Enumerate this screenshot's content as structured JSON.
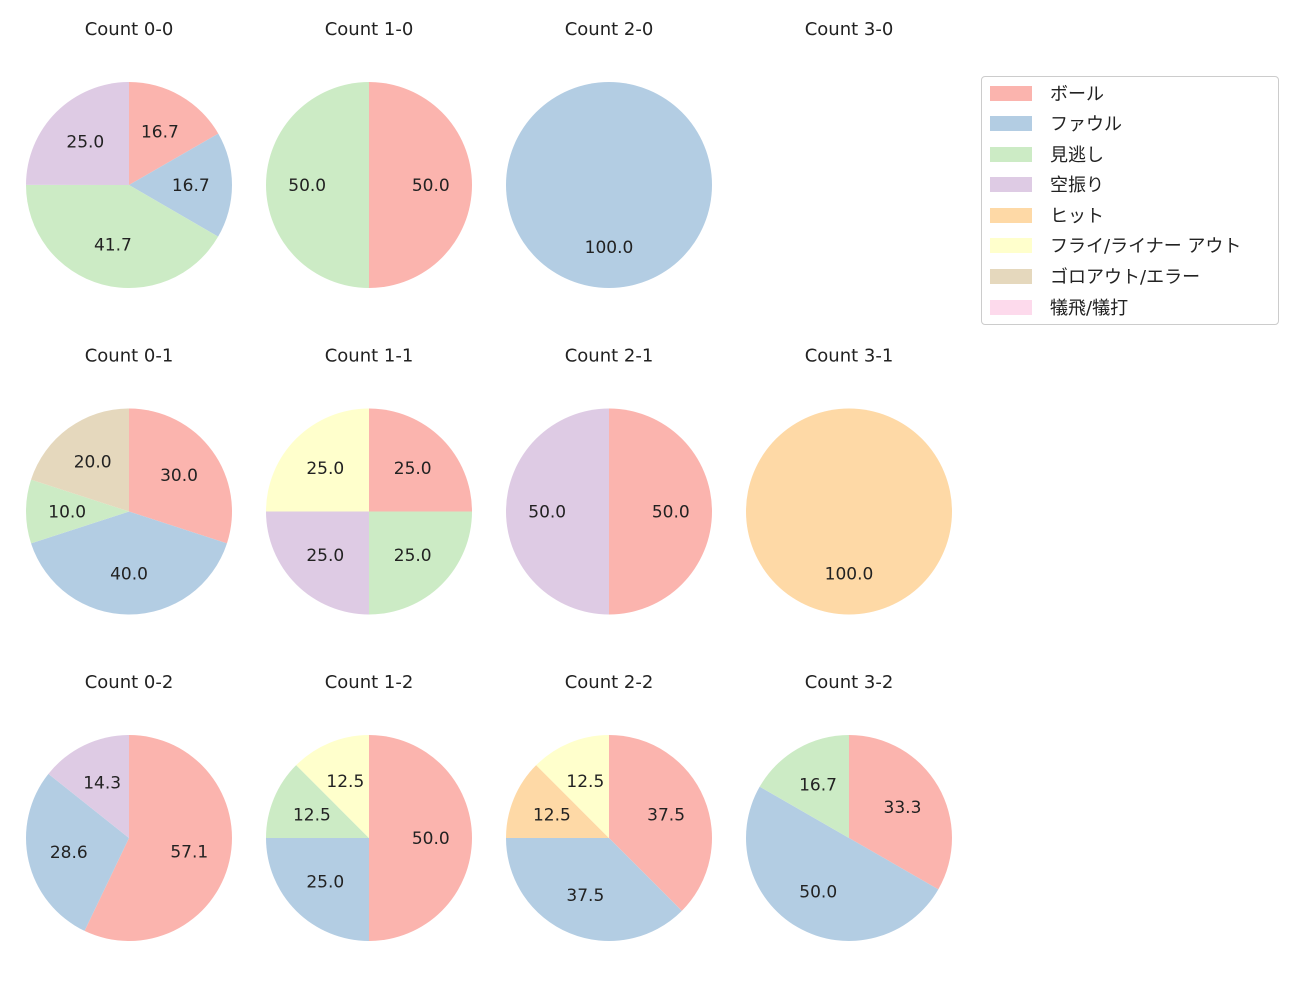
{
  "chart_data": {
    "type": "pie",
    "start_angle": 90,
    "direction": "clockwise",
    "legend_position": "right",
    "categories": [
      "ボール",
      "ファウル",
      "見逃し",
      "空振り",
      "ヒット",
      "フライ/ライナー アウト",
      "ゴロアウト/エラー",
      "犠飛/犠打"
    ],
    "colors": [
      "#fbb4ae",
      "#b3cde3",
      "#ccebc5",
      "#decbe4",
      "#fed9a6",
      "#ffffcc",
      "#e5d8bd",
      "#fddaec"
    ],
    "charts": [
      {
        "title": "Count 0-0",
        "values": [
          16.7,
          16.7,
          41.7,
          25.0,
          0,
          0,
          0,
          0
        ]
      },
      {
        "title": "Count 1-0",
        "values": [
          50.0,
          0,
          50.0,
          0,
          0,
          0,
          0,
          0
        ]
      },
      {
        "title": "Count 2-0",
        "values": [
          0,
          100.0,
          0,
          0,
          0,
          0,
          0,
          0
        ]
      },
      {
        "title": "Count 3-0",
        "values": [
          0,
          0,
          0,
          0,
          0,
          0,
          0,
          0
        ]
      },
      {
        "title": "Count 0-1",
        "values": [
          30.0,
          40.0,
          10.0,
          0,
          0,
          0,
          20.0,
          0
        ]
      },
      {
        "title": "Count 1-1",
        "values": [
          25.0,
          0,
          25.0,
          25.0,
          0,
          25.0,
          0,
          0
        ]
      },
      {
        "title": "Count 2-1",
        "values": [
          50.0,
          0,
          0,
          50.0,
          0,
          0,
          0,
          0
        ]
      },
      {
        "title": "Count 3-1",
        "values": [
          0,
          0,
          0,
          0,
          100.0,
          0,
          0,
          0
        ]
      },
      {
        "title": "Count 0-2",
        "values": [
          57.1,
          28.6,
          0,
          14.3,
          0,
          0,
          0,
          0
        ]
      },
      {
        "title": "Count 1-2",
        "values": [
          50.0,
          25.0,
          12.5,
          0,
          0,
          12.5,
          0,
          0
        ]
      },
      {
        "title": "Count 2-2",
        "values": [
          37.5,
          37.5,
          0,
          0,
          12.5,
          12.5,
          0,
          0
        ]
      },
      {
        "title": "Count 3-2",
        "values": [
          33.3,
          50.0,
          16.7,
          0,
          0,
          0,
          0,
          0
        ]
      }
    ]
  }
}
